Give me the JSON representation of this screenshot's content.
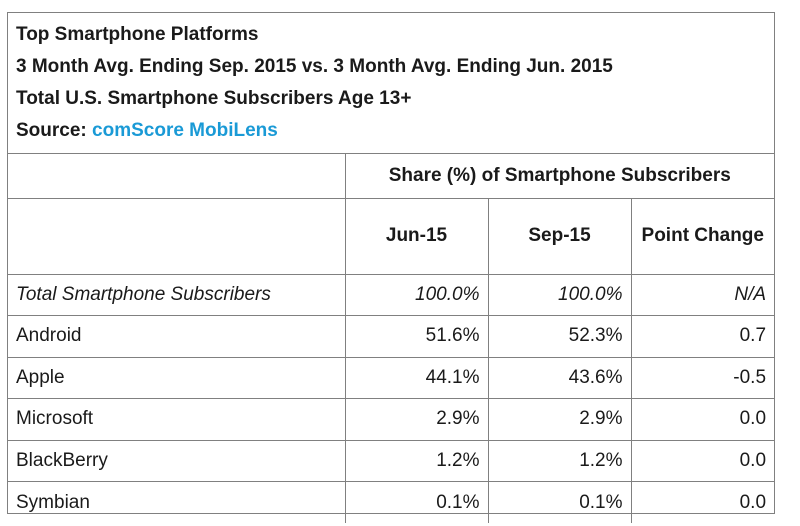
{
  "header": {
    "title": "Top Smartphone Platforms",
    "subtitle": "3 Month Avg. Ending Sep. 2015 vs. 3 Month Avg. Ending Jun. 2015",
    "population": "Total U.S. Smartphone Subscribers Age 13+",
    "source_label": "Source: ",
    "source_name": "comScore MobiLens"
  },
  "table": {
    "group_header": "Share (%) of Smartphone Subscribers",
    "columns": [
      "Jun-15",
      "Sep-15",
      "Point Change"
    ],
    "rows": [
      {
        "label": "Total Smartphone Subscribers",
        "jun": "100.0%",
        "sep": "100.0%",
        "change": "N/A"
      },
      {
        "label": "Android",
        "jun": "51.6%",
        "sep": "52.3%",
        "change": "0.7"
      },
      {
        "label": "Apple",
        "jun": "44.1%",
        "sep": "43.6%",
        "change": "-0.5"
      },
      {
        "label": "Microsoft",
        "jun": "2.9%",
        "sep": "2.9%",
        "change": "0.0"
      },
      {
        "label": "BlackBerry",
        "jun": "1.2%",
        "sep": "1.2%",
        "change": "0.0"
      },
      {
        "label": "Symbian",
        "jun": "0.1%",
        "sep": "0.1%",
        "change": "0.0"
      }
    ]
  },
  "colors": {
    "border": "#808080",
    "source_link": "#1a9ad6",
    "text": "#1a1a1a"
  }
}
